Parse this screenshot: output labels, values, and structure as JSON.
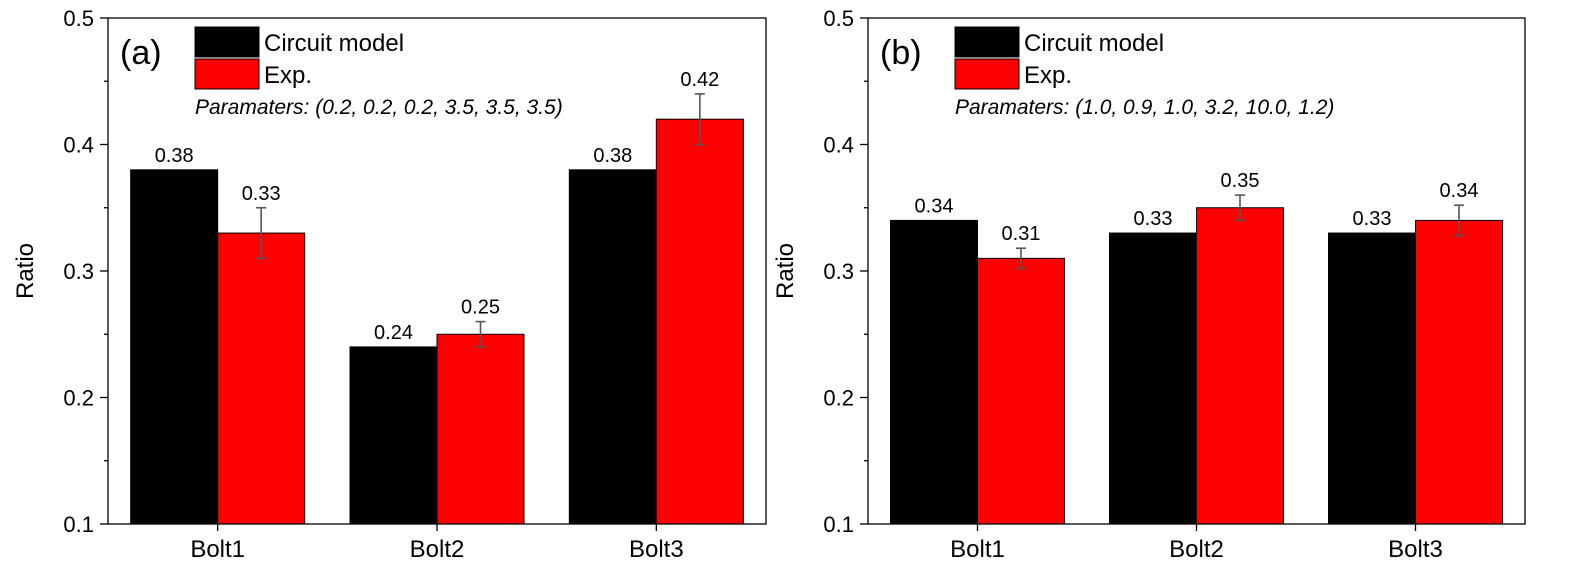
{
  "chart_data": [
    {
      "type": "bar",
      "panel_label": "(a)",
      "categories": [
        "Bolt1",
        "Bolt2",
        "Bolt3"
      ],
      "series": [
        {
          "name": "Circuit model",
          "color": "#000000",
          "values": [
            0.38,
            0.24,
            0.38
          ],
          "labels": [
            "0.38",
            "0.24",
            "0.38"
          ]
        },
        {
          "name": "Exp.",
          "color": "#ff0000",
          "values": [
            0.33,
            0.25,
            0.42
          ],
          "labels": [
            "0.33",
            "0.25",
            "0.42"
          ],
          "errors": [
            0.02,
            0.01,
            0.02
          ]
        }
      ],
      "parameters_text": "Paramaters: (0.2, 0.2, 0.2, 3.5, 3.5, 3.5)",
      "xlabel": "",
      "ylabel": "Ratio",
      "ylim": [
        0.1,
        0.5
      ],
      "yticks": [
        0.1,
        0.2,
        0.3,
        0.4,
        0.5
      ],
      "ytick_labels": [
        "0.1",
        "0.2",
        "0.3",
        "0.4",
        "0.5"
      ],
      "legend_position": "top-left"
    },
    {
      "type": "bar",
      "panel_label": "(b)",
      "categories": [
        "Bolt1",
        "Bolt2",
        "Bolt3"
      ],
      "series": [
        {
          "name": "Circuit model",
          "color": "#000000",
          "values": [
            0.34,
            0.33,
            0.33
          ],
          "labels": [
            "0.34",
            "0.33",
            "0.33"
          ]
        },
        {
          "name": "Exp.",
          "color": "#ff0000",
          "values": [
            0.31,
            0.35,
            0.34
          ],
          "labels": [
            "0.31",
            "0.35",
            "0.34"
          ],
          "errors": [
            0.008,
            0.01,
            0.012
          ]
        }
      ],
      "parameters_text": "Paramaters: (1.0, 0.9, 1.0, 3.2, 10.0, 1.2)",
      "xlabel": "",
      "ylabel": "Ratio",
      "ylim": [
        0.1,
        0.5
      ],
      "yticks": [
        0.1,
        0.2,
        0.3,
        0.4,
        0.5
      ],
      "ytick_labels": [
        "0.1",
        "0.2",
        "0.3",
        "0.4",
        "0.5"
      ],
      "legend_position": "top-left"
    }
  ]
}
